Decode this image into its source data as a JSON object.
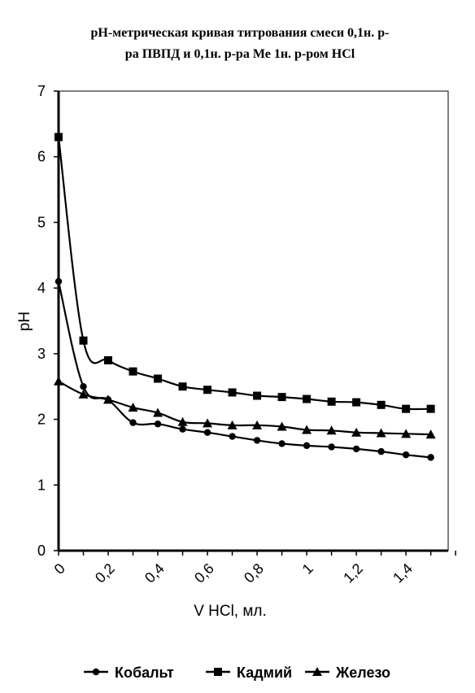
{
  "chart_data": {
    "type": "line",
    "title_lines": [
      "pH-метрическая кривая титрования смеси 0,1н. р-",
      "ра  ПВПД и 0,1н. р-ра Ме 1н. р-ром HCl"
    ],
    "xlabel": "V HCl, мл.",
    "ylabel": "pH",
    "xlim": [
      0,
      1.57
    ],
    "ylim": [
      0,
      7
    ],
    "x_ticks": [
      0,
      0.2,
      0.4,
      0.6,
      0.8,
      1,
      1.2,
      1.4
    ],
    "x_tick_labels": [
      "0",
      "0,2",
      "0,4",
      "0,6",
      "0,8",
      "1",
      "1,2",
      "1,4"
    ],
    "y_ticks": [
      0,
      1,
      2,
      3,
      4,
      5,
      6,
      7
    ],
    "y_tick_labels": [
      "0",
      "1",
      "2",
      "3",
      "4",
      "5",
      "6",
      "7"
    ],
    "grid": false,
    "legend_position": "bottom",
    "x": [
      0,
      0.1,
      0.2,
      0.3,
      0.4,
      0.5,
      0.6,
      0.7,
      0.8,
      0.9,
      1.0,
      1.1,
      1.2,
      1.3,
      1.4,
      1.5
    ],
    "series": [
      {
        "name": "Кобальт",
        "marker": "circle",
        "values": [
          4.1,
          2.5,
          2.3,
          1.95,
          1.93,
          1.85,
          1.8,
          1.74,
          1.68,
          1.63,
          1.6,
          1.58,
          1.55,
          1.51,
          1.46,
          1.42
        ]
      },
      {
        "name": "Кадмий",
        "marker": "square",
        "values": [
          6.3,
          3.2,
          2.9,
          2.73,
          2.62,
          2.5,
          2.45,
          2.41,
          2.36,
          2.34,
          2.31,
          2.27,
          2.26,
          2.22,
          2.16,
          2.16
        ]
      },
      {
        "name": "Железо",
        "marker": "triangle",
        "values": [
          2.58,
          2.38,
          2.3,
          2.18,
          2.1,
          1.96,
          1.94,
          1.91,
          1.91,
          1.89,
          1.84,
          1.83,
          1.8,
          1.79,
          1.78,
          1.77
        ]
      }
    ]
  }
}
